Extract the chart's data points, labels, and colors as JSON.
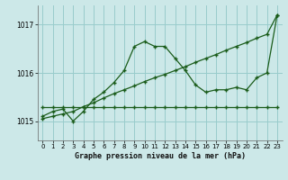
{
  "background_color": "#cce8e8",
  "grid_color": "#99cccc",
  "line_color": "#1a5c1a",
  "ylim": [
    1014.6,
    1017.4
  ],
  "xlim": [
    -0.5,
    23.5
  ],
  "yticks": [
    1015,
    1016,
    1017
  ],
  "xticks": [
    0,
    1,
    2,
    3,
    4,
    5,
    6,
    7,
    8,
    9,
    10,
    11,
    12,
    13,
    14,
    15,
    16,
    17,
    18,
    19,
    20,
    21,
    22,
    23
  ],
  "xlabel": "Graphe pression niveau de la mer (hPa)",
  "flat_x": [
    0,
    1,
    2,
    3,
    4,
    5,
    6,
    7,
    8,
    9,
    10,
    11,
    12,
    13,
    14,
    15,
    16,
    17,
    18,
    19,
    20,
    21,
    22,
    23
  ],
  "flat_y": [
    1015.3,
    1015.3,
    1015.3,
    1015.3,
    1015.3,
    1015.3,
    1015.3,
    1015.3,
    1015.3,
    1015.3,
    1015.3,
    1015.3,
    1015.3,
    1015.3,
    1015.3,
    1015.3,
    1015.3,
    1015.3,
    1015.3,
    1015.3,
    1015.3,
    1015.3,
    1015.3,
    1015.3
  ],
  "wave_x": [
    0,
    1,
    2,
    3,
    4,
    5,
    6,
    7,
    8,
    9,
    10,
    11,
    12,
    13,
    14,
    15,
    16,
    17,
    18,
    19,
    20,
    21,
    22,
    23
  ],
  "wave_y": [
    1015.1,
    1015.2,
    1015.25,
    1015.0,
    1015.2,
    1015.45,
    1015.6,
    1015.8,
    1016.05,
    1016.55,
    1016.65,
    1016.55,
    1016.55,
    1016.3,
    1016.05,
    1015.75,
    1015.6,
    1015.65,
    1015.65,
    1015.7,
    1015.65,
    1015.9,
    1016.0,
    1017.2
  ],
  "diag_x": [
    0,
    1,
    2,
    3,
    4,
    5,
    6,
    7,
    8,
    9,
    10,
    11,
    12,
    13,
    14,
    15,
    16,
    17,
    18,
    19,
    20,
    21,
    22,
    23
  ],
  "diag_y": [
    1015.05,
    1015.1,
    1015.15,
    1015.2,
    1015.3,
    1015.38,
    1015.48,
    1015.57,
    1015.65,
    1015.73,
    1015.82,
    1015.9,
    1015.97,
    1016.05,
    1016.13,
    1016.22,
    1016.3,
    1016.38,
    1016.47,
    1016.55,
    1016.63,
    1016.72,
    1016.8,
    1017.2
  ]
}
